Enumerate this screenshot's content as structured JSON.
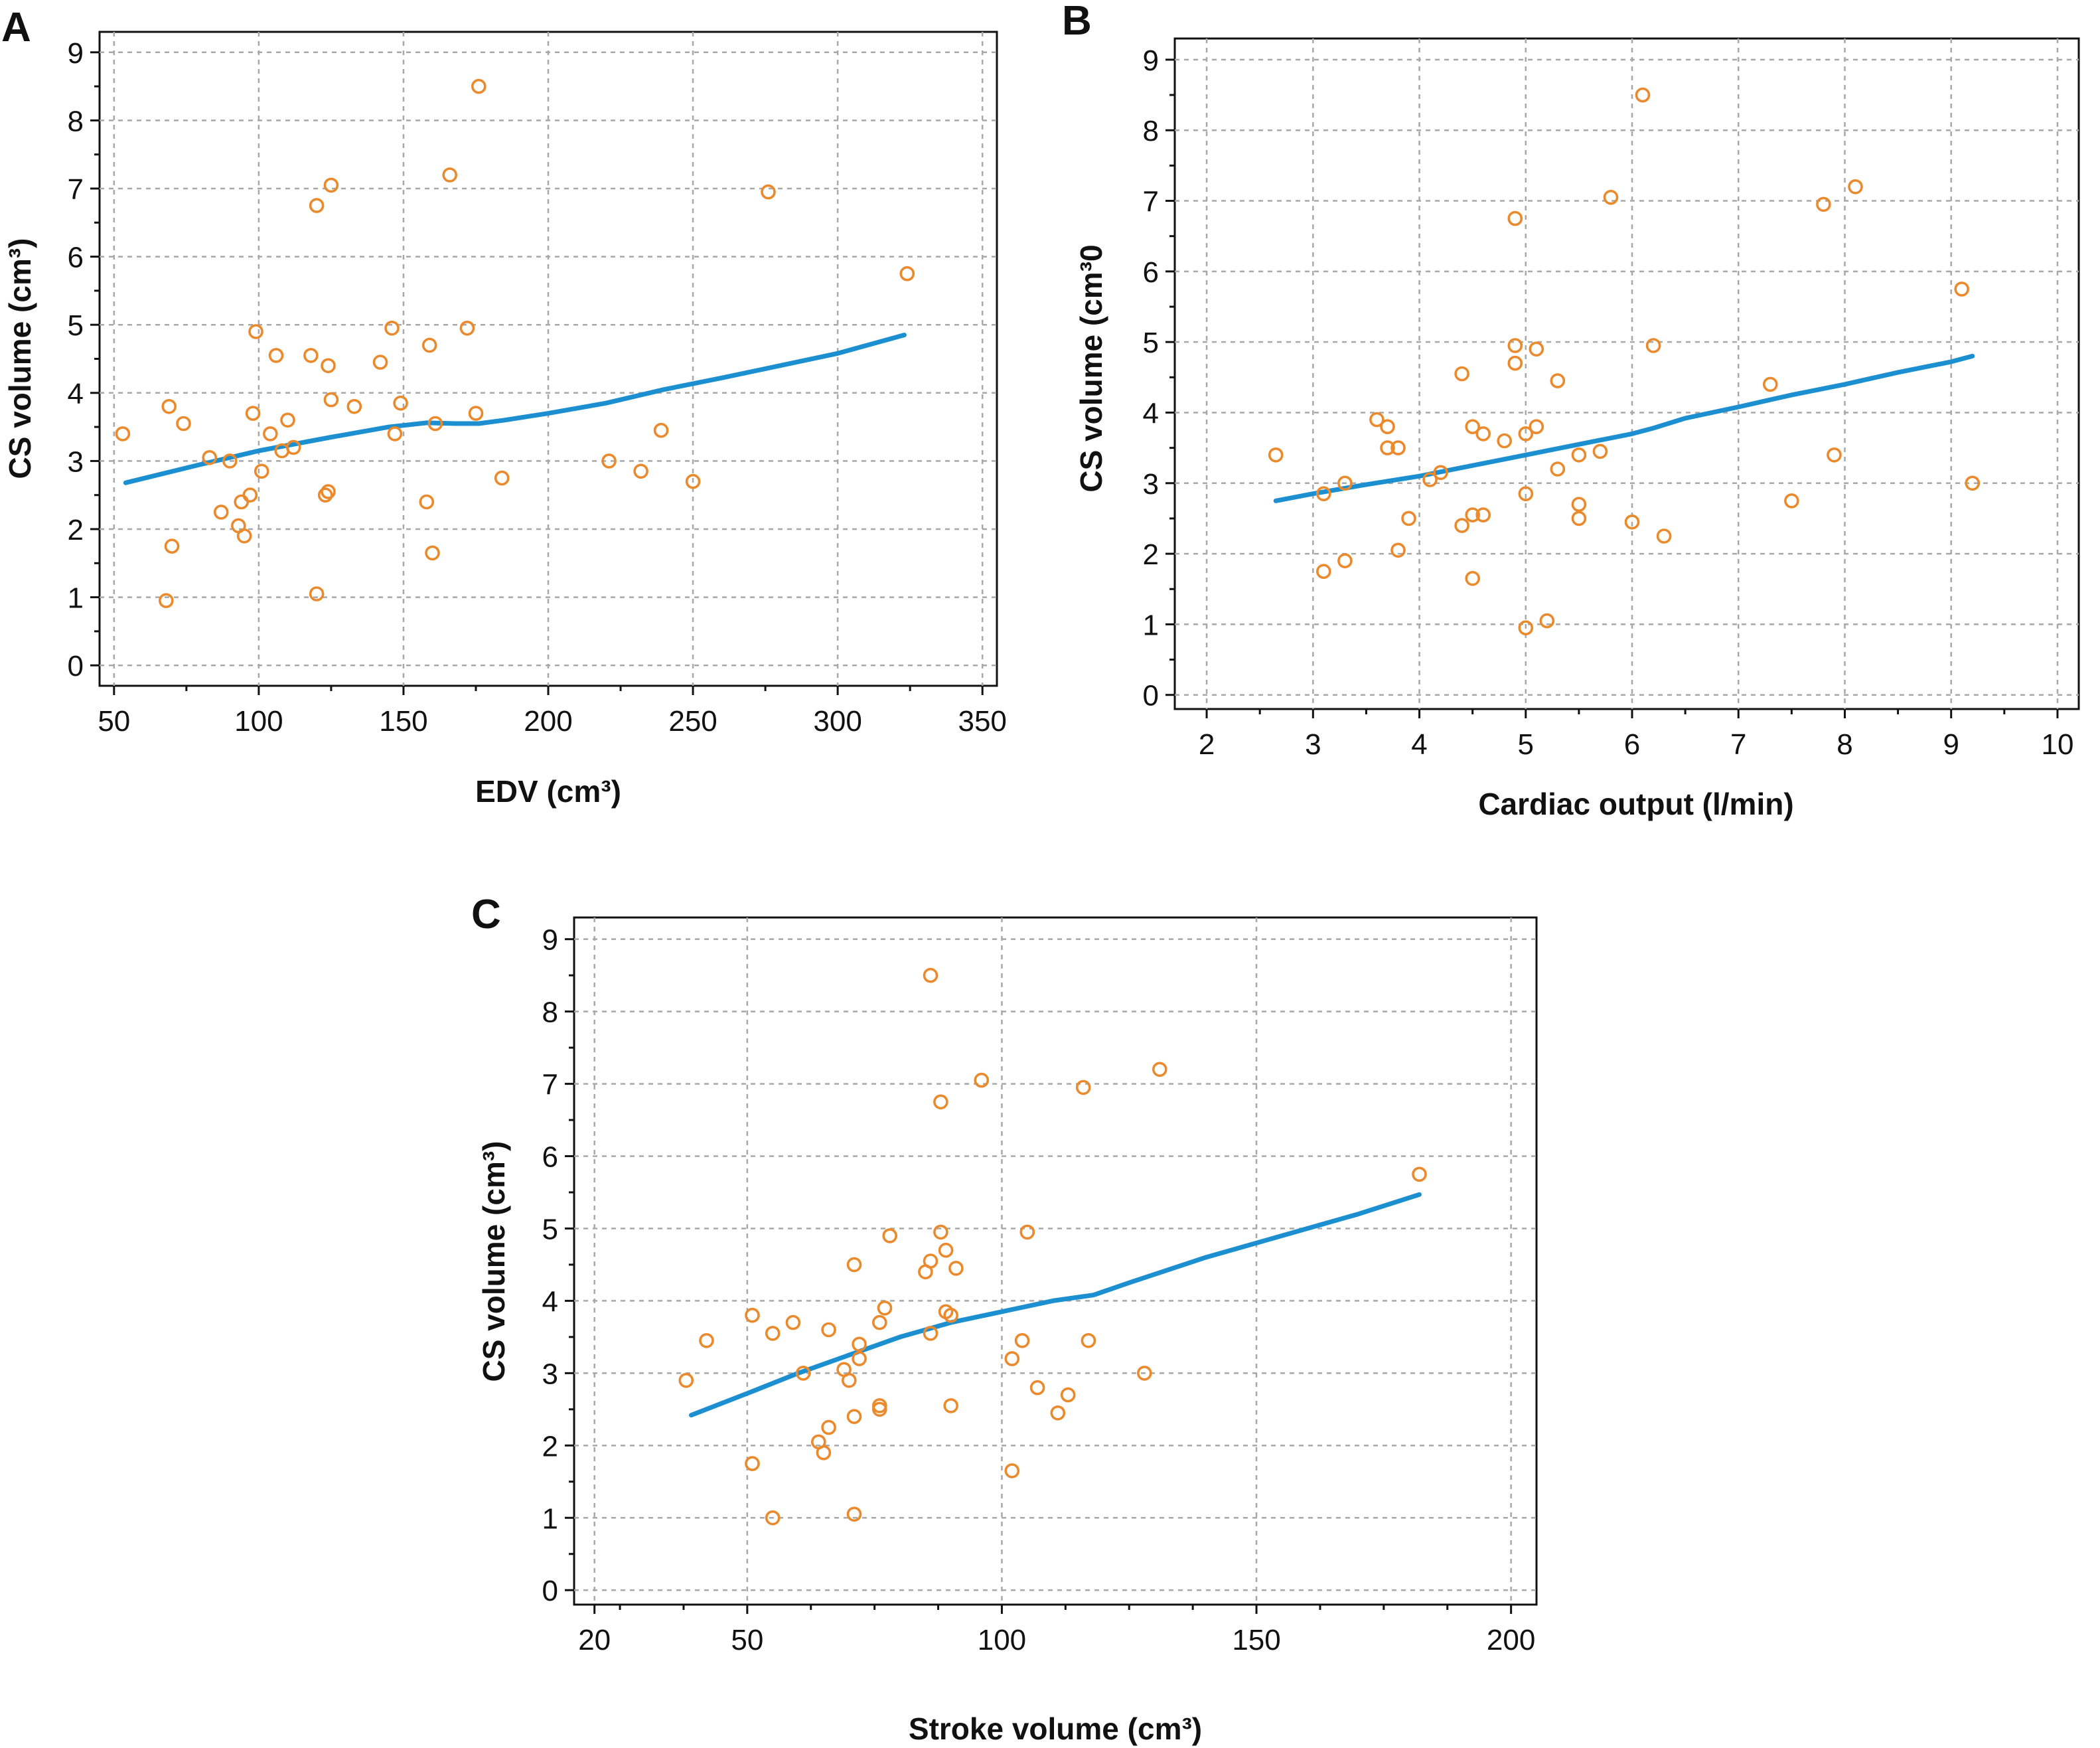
{
  "colors": {
    "points": "#ea8a2c",
    "fit_line": "#1c8fd1",
    "grid": "#a8a8a8",
    "frame": "#111111"
  },
  "chart_data": [
    {
      "panel": "A",
      "type": "scatter",
      "xlabel": "EDV (cm³)",
      "ylabel": "CS volume (cm³)",
      "xlim": [
        45,
        355
      ],
      "ylim": [
        -0.3,
        9.3
      ],
      "xticks": [
        50,
        100,
        150,
        200,
        250,
        300,
        350
      ],
      "yticks": [
        0,
        1,
        2,
        3,
        4,
        5,
        6,
        7,
        8,
        9
      ],
      "grid": true,
      "points": [
        [
          53,
          3.4
        ],
        [
          68,
          0.95
        ],
        [
          69,
          3.8
        ],
        [
          70,
          1.75
        ],
        [
          74,
          3.55
        ],
        [
          83,
          3.05
        ],
        [
          87,
          2.25
        ],
        [
          90,
          3.0
        ],
        [
          93,
          2.05
        ],
        [
          94,
          2.4
        ],
        [
          95,
          1.9
        ],
        [
          97,
          2.5
        ],
        [
          98,
          3.7
        ],
        [
          99,
          4.9
        ],
        [
          101,
          2.85
        ],
        [
          104,
          3.4
        ],
        [
          106,
          4.55
        ],
        [
          108,
          3.15
        ],
        [
          110,
          3.6
        ],
        [
          112,
          3.2
        ],
        [
          118,
          4.55
        ],
        [
          120,
          1.05
        ],
        [
          120,
          6.75
        ],
        [
          123,
          2.5
        ],
        [
          124,
          4.4
        ],
        [
          124,
          2.55
        ],
        [
          125,
          3.9
        ],
        [
          125,
          7.05
        ],
        [
          133,
          3.8
        ],
        [
          142,
          4.45
        ],
        [
          146,
          4.95
        ],
        [
          147,
          3.4
        ],
        [
          149,
          3.85
        ],
        [
          158,
          2.4
        ],
        [
          159,
          4.7
        ],
        [
          160,
          1.65
        ],
        [
          161,
          3.55
        ],
        [
          166,
          7.2
        ],
        [
          172,
          4.95
        ],
        [
          175,
          3.7
        ],
        [
          176,
          8.5
        ],
        [
          184,
          2.75
        ],
        [
          221,
          3.0
        ],
        [
          232,
          2.85
        ],
        [
          239,
          3.45
        ],
        [
          250,
          2.7
        ],
        [
          276,
          6.95
        ],
        [
          324,
          5.75
        ]
      ],
      "fit_line": [
        [
          54,
          2.68
        ],
        [
          80,
          2.95
        ],
        [
          100,
          3.15
        ],
        [
          125,
          3.35
        ],
        [
          145,
          3.5
        ],
        [
          158,
          3.56
        ],
        [
          168,
          3.55
        ],
        [
          176,
          3.55
        ],
        [
          185,
          3.6
        ],
        [
          200,
          3.7
        ],
        [
          220,
          3.85
        ],
        [
          240,
          4.05
        ],
        [
          260,
          4.22
        ],
        [
          280,
          4.4
        ],
        [
          300,
          4.58
        ],
        [
          323,
          4.85
        ]
      ]
    },
    {
      "panel": "B",
      "type": "scatter",
      "xlabel": "Cardiac output (l/min)",
      "ylabel": "CS volume (cm³0",
      "xlim": [
        1.7,
        10.2
      ],
      "ylim": [
        -0.2,
        9.3
      ],
      "xticks": [
        2,
        3,
        4,
        5,
        6,
        7,
        8,
        9,
        10
      ],
      "yticks": [
        0,
        1,
        2,
        3,
        4,
        5,
        6,
        7,
        8,
        9
      ],
      "grid": true,
      "points": [
        [
          2.65,
          3.4
        ],
        [
          3.1,
          1.75
        ],
        [
          3.1,
          2.85
        ],
        [
          3.3,
          1.9
        ],
        [
          3.3,
          3.0
        ],
        [
          3.6,
          3.9
        ],
        [
          3.7,
          3.8
        ],
        [
          3.7,
          3.5
        ],
        [
          3.8,
          3.5
        ],
        [
          3.8,
          2.05
        ],
        [
          3.9,
          2.5
        ],
        [
          4.1,
          3.05
        ],
        [
          4.2,
          3.15
        ],
        [
          4.4,
          2.4
        ],
        [
          4.4,
          4.55
        ],
        [
          4.5,
          3.8
        ],
        [
          4.5,
          2.55
        ],
        [
          4.5,
          1.65
        ],
        [
          4.6,
          3.7
        ],
        [
          4.6,
          2.55
        ],
        [
          4.8,
          3.6
        ],
        [
          4.9,
          6.75
        ],
        [
          4.9,
          4.95
        ],
        [
          4.9,
          4.7
        ],
        [
          5.0,
          0.95
        ],
        [
          5.0,
          3.7
        ],
        [
          5.0,
          2.85
        ],
        [
          5.1,
          4.9
        ],
        [
          5.1,
          3.8
        ],
        [
          5.2,
          1.05
        ],
        [
          5.3,
          4.45
        ],
        [
          5.3,
          3.2
        ],
        [
          5.5,
          3.4
        ],
        [
          5.5,
          2.7
        ],
        [
          5.5,
          2.5
        ],
        [
          5.7,
          3.45
        ],
        [
          5.8,
          7.05
        ],
        [
          6.0,
          2.45
        ],
        [
          6.1,
          8.5
        ],
        [
          6.2,
          4.95
        ],
        [
          6.3,
          2.25
        ],
        [
          7.3,
          4.4
        ],
        [
          7.5,
          2.75
        ],
        [
          7.8,
          6.95
        ],
        [
          7.9,
          3.4
        ],
        [
          8.1,
          7.2
        ],
        [
          9.1,
          5.75
        ],
        [
          9.2,
          3.0
        ]
      ],
      "fit_line": [
        [
          2.65,
          2.75
        ],
        [
          3.0,
          2.85
        ],
        [
          3.5,
          2.98
        ],
        [
          4.0,
          3.1
        ],
        [
          4.5,
          3.25
        ],
        [
          5.0,
          3.4
        ],
        [
          5.5,
          3.55
        ],
        [
          6.0,
          3.7
        ],
        [
          6.2,
          3.78
        ],
        [
          6.5,
          3.92
        ],
        [
          7.0,
          4.08
        ],
        [
          7.5,
          4.25
        ],
        [
          8.0,
          4.4
        ],
        [
          8.5,
          4.57
        ],
        [
          9.0,
          4.72
        ],
        [
          9.2,
          4.8
        ]
      ]
    },
    {
      "panel": "C",
      "type": "scatter",
      "xlabel": "Stroke volume (cm³)",
      "ylabel": "CS volume (cm³)",
      "xlim": [
        16,
        205
      ],
      "ylim": [
        -0.2,
        9.3
      ],
      "xticks": [
        20,
        50,
        100,
        150,
        200
      ],
      "yticks": [
        0,
        1,
        2,
        3,
        4,
        5,
        6,
        7,
        8,
        9
      ],
      "grid": true,
      "points": [
        [
          38,
          2.9
        ],
        [
          42,
          3.45
        ],
        [
          51,
          1.75
        ],
        [
          51,
          3.8
        ],
        [
          55,
          3.55
        ],
        [
          55,
          1.0
        ],
        [
          59,
          3.7
        ],
        [
          61,
          3.0
        ],
        [
          64,
          2.05
        ],
        [
          65,
          1.9
        ],
        [
          66,
          3.6
        ],
        [
          66,
          2.25
        ],
        [
          69,
          3.05
        ],
        [
          70,
          2.9
        ],
        [
          71,
          4.5
        ],
        [
          71,
          2.4
        ],
        [
          71,
          1.05
        ],
        [
          72,
          3.2
        ],
        [
          72,
          3.4
        ],
        [
          76,
          3.7
        ],
        [
          76,
          2.55
        ],
        [
          76,
          2.5
        ],
        [
          77,
          3.9
        ],
        [
          78,
          4.9
        ],
        [
          85,
          4.4
        ],
        [
          86,
          4.55
        ],
        [
          86,
          3.55
        ],
        [
          86,
          8.5
        ],
        [
          88,
          6.75
        ],
        [
          88,
          4.95
        ],
        [
          89,
          4.7
        ],
        [
          89,
          3.85
        ],
        [
          90,
          2.55
        ],
        [
          90,
          3.8
        ],
        [
          91,
          4.45
        ],
        [
          96,
          7.05
        ],
        [
          102,
          1.65
        ],
        [
          102,
          3.2
        ],
        [
          104,
          3.45
        ],
        [
          105,
          4.95
        ],
        [
          107,
          2.8
        ],
        [
          111,
          2.45
        ],
        [
          113,
          2.7
        ],
        [
          116,
          6.95
        ],
        [
          117,
          3.45
        ],
        [
          128,
          3.0
        ],
        [
          131,
          7.2
        ],
        [
          182,
          5.75
        ]
      ],
      "fit_line": [
        [
          39,
          2.42
        ],
        [
          50,
          2.72
        ],
        [
          60,
          3.0
        ],
        [
          70,
          3.25
        ],
        [
          80,
          3.5
        ],
        [
          90,
          3.7
        ],
        [
          100,
          3.85
        ],
        [
          110,
          4.0
        ],
        [
          118,
          4.08
        ],
        [
          125,
          4.25
        ],
        [
          140,
          4.6
        ],
        [
          155,
          4.9
        ],
        [
          170,
          5.2
        ],
        [
          182,
          5.47
        ]
      ]
    }
  ]
}
